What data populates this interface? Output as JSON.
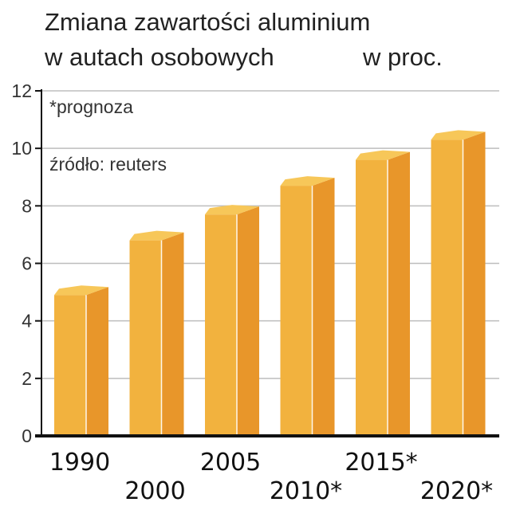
{
  "chart_data": {
    "type": "bar",
    "title": [
      "Zmiana zawartości aluminium",
      "w autach osobowych"
    ],
    "unit": "w proc.",
    "notes": [
      "*prognoza",
      "źródło: reuters"
    ],
    "categories": [
      "1990",
      "2000",
      "2005",
      "2010*",
      "2015*",
      "2020*"
    ],
    "values": [
      4.9,
      6.8,
      7.7,
      8.7,
      9.6,
      10.3
    ],
    "yticks": [
      0,
      2,
      4,
      6,
      8,
      10,
      12
    ],
    "ylim": [
      0,
      12
    ],
    "grid": true,
    "bar_style": "3d",
    "colors": {
      "front": "#F2B23E",
      "side": "#E8962A",
      "top": "#F7C759",
      "grid": "#bdbdbd",
      "axis": "#111111"
    }
  }
}
